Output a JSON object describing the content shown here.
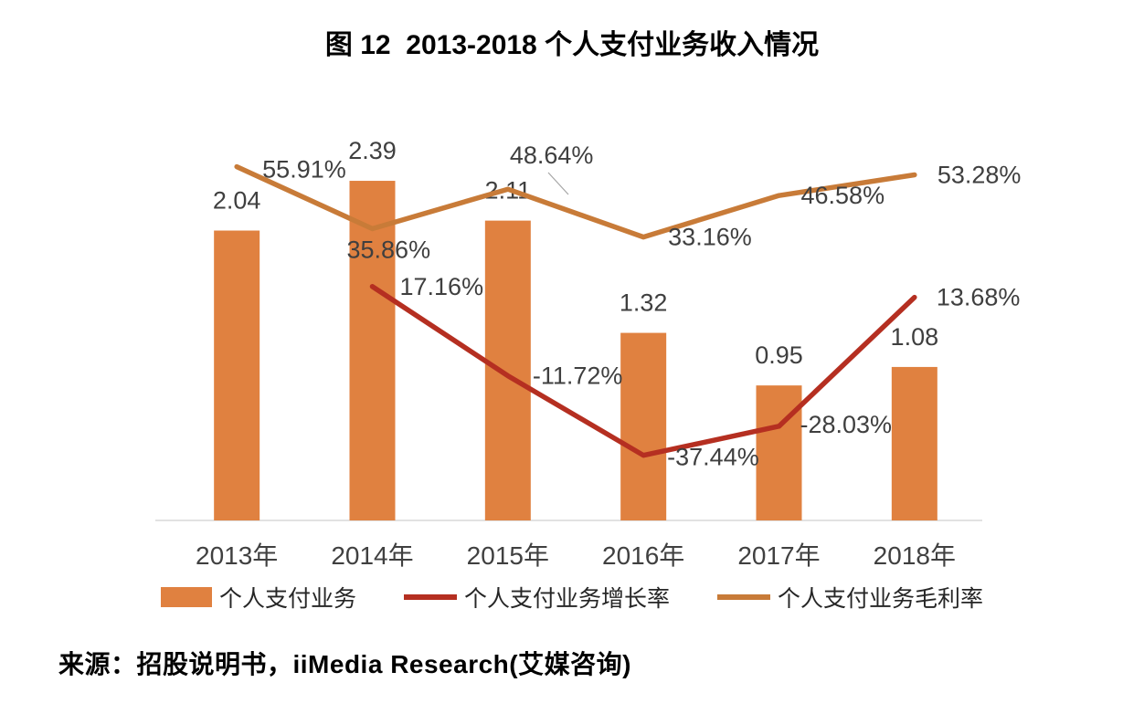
{
  "title": "图 12  2013-2018 个人支付业务收入情况",
  "source": "来源：招股说明书，iiMedia Research(艾媒咨询)",
  "colors": {
    "bar": "#E08140",
    "growth_line": "#B52F21",
    "margin_line": "#C87B38",
    "axis_line": "#D9D9D9",
    "data_label": "#3F3F3F",
    "leader_line": "#A6A6A6"
  },
  "chart_data": {
    "type": "bar",
    "subtype": "bar-line-combo",
    "title": "图 12  2013-2018 个人支付业务收入情况",
    "categories": [
      "2013年",
      "2014年",
      "2015年",
      "2016年",
      "2017年",
      "2018年"
    ],
    "series": [
      {
        "name": "个人支付业务",
        "type": "bar",
        "axis": "left",
        "values": [
          2.04,
          2.39,
          2.11,
          1.32,
          0.95,
          1.08
        ],
        "labels": [
          "2.04",
          "2.39",
          "2.11",
          "1.32",
          "0.95",
          "1.08"
        ],
        "color": "#E08140"
      },
      {
        "name": "个人支付业务增长率",
        "type": "line",
        "axis": "right",
        "values": [
          null,
          17.16,
          -11.72,
          -37.44,
          -28.03,
          13.68
        ],
        "labels": [
          "",
          "17.16%",
          "-11.72%",
          "-37.44%",
          "-28.03%",
          "13.68%"
        ],
        "color": "#B52F21"
      },
      {
        "name": "个人支付业务毛利率",
        "type": "line",
        "axis": "right",
        "values": [
          55.91,
          35.86,
          48.64,
          33.16,
          46.58,
          53.28
        ],
        "labels": [
          "55.91%",
          "35.86%",
          "48.64%",
          "33.16%",
          "46.58%",
          "53.28%"
        ],
        "color": "#C87B38"
      }
    ],
    "xlabel": "",
    "ylabel_left": "",
    "ylabel_right": "",
    "left_axis_range": [
      0,
      3.02
    ],
    "right_axis_range_pct": [
      -58.5,
      80.3
    ],
    "grid": false,
    "legend_position": "bottom",
    "legend": [
      "个人支付业务",
      "个人支付业务增长率",
      "个人支付业务毛利率"
    ]
  }
}
